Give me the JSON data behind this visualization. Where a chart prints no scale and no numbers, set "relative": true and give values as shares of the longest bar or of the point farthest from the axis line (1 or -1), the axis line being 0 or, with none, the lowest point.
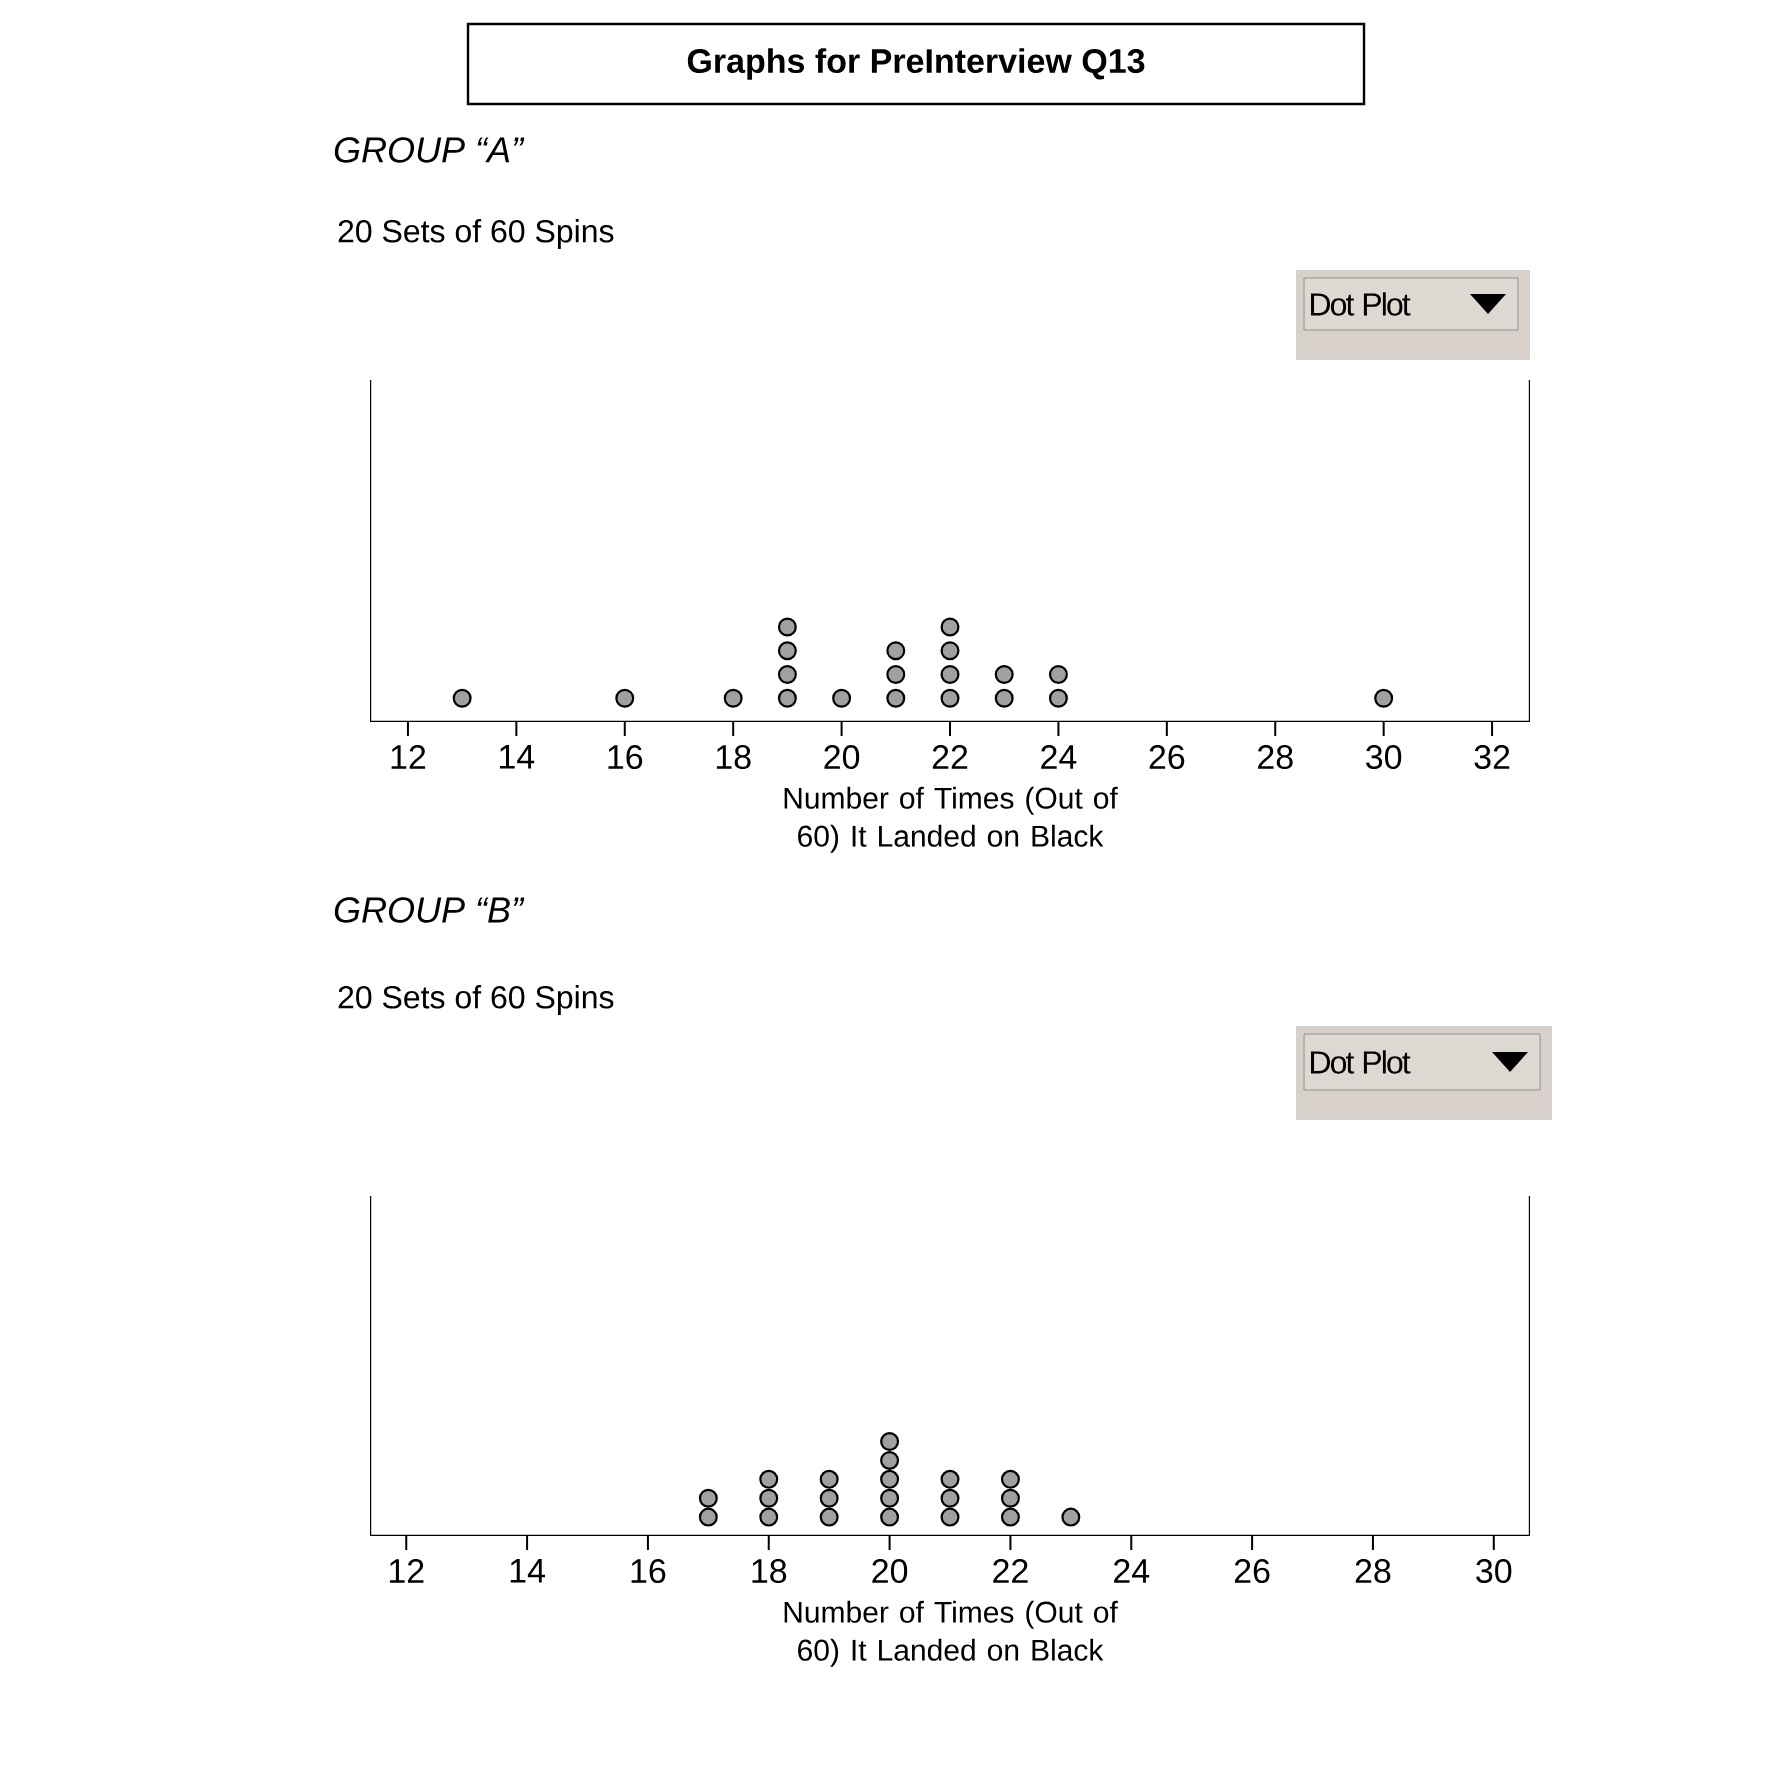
{
  "chart_data": [
    {
      "type": "scatter",
      "title": "Graphs for PreInterview Q13",
      "subtitle": "GROUP “A”",
      "annotations": [
        "20 Sets of 60 Spins",
        "Dot Plot"
      ],
      "xlabel": "Number of Times (Out of 60) It Landed on Black",
      "relative": true,
      "marker": "circle",
      "tick_labels": "x",
      "xlim": [
        11.3,
        32.7
      ],
      "xticks": [
        12,
        14,
        16,
        18,
        20,
        22,
        24,
        26,
        28,
        30,
        32
      ],
      "series": [
        {
          "color": "#a0a0a0",
          "x": [
            13,
            16,
            18,
            19,
            19,
            19,
            19,
            20,
            21,
            21,
            21,
            22,
            22,
            22,
            22,
            23,
            23,
            24,
            24,
            30
          ],
          "values": [
            0.25,
            0.25,
            0.25,
            0.25,
            0.5,
            0.75,
            1,
            0.25,
            0.25,
            0.5,
            0.75,
            0.25,
            0.5,
            0.75,
            1,
            0.25,
            0.5,
            0.25,
            0.5,
            0.25
          ]
        }
      ]
    },
    {
      "type": "scatter",
      "title": "GROUP “B”",
      "annotations": [
        "20 Sets of 60 Spins",
        "Dot Plot"
      ],
      "xlabel": "Number of Times (Out of 60) It Landed on Black",
      "relative": true,
      "marker": "circle",
      "tick_labels": "x",
      "xlim": [
        11.4,
        30.6
      ],
      "xticks": [
        12,
        14,
        16,
        18,
        20,
        22,
        24,
        26,
        28,
        30
      ],
      "series": [
        {
          "color": "#a0a0a0",
          "x": [
            17,
            17,
            18,
            18,
            18,
            19,
            19,
            19,
            20,
            20,
            20,
            20,
            20,
            21,
            21,
            21,
            22,
            22,
            22,
            23
          ],
          "values": [
            0.2,
            0.4,
            0.2,
            0.4,
            0.6,
            0.2,
            0.4,
            0.6,
            0.2,
            0.4,
            0.6,
            0.8,
            1,
            0.2,
            0.4,
            0.6,
            0.2,
            0.4,
            0.6,
            0.2
          ]
        }
      ]
    }
  ]
}
